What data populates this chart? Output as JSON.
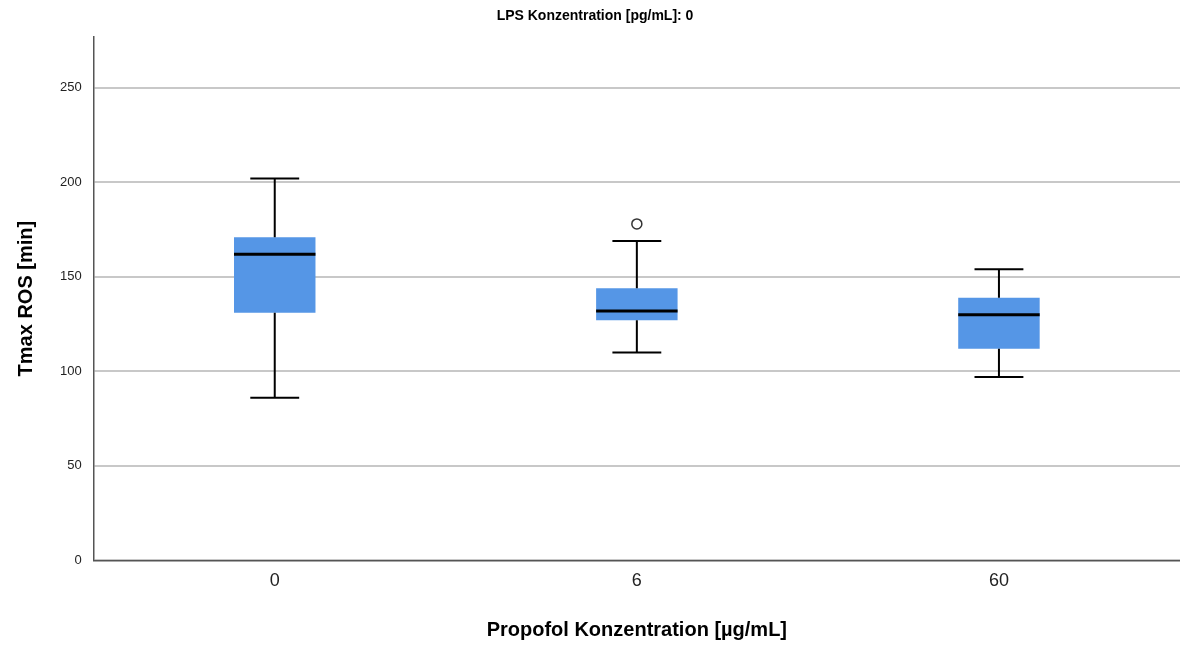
{
  "chart_data": {
    "type": "box",
    "title": "LPS Konzentration [pg/mL]: 0",
    "xlabel": "Propofol Konzentration [µg/mL]",
    "ylabel": "Tmax ROS [min]",
    "categories": [
      "0",
      "6",
      "60"
    ],
    "color": "#5596e6",
    "boxes": [
      {
        "low": 86,
        "q1": 131,
        "median": 162,
        "q3": 171,
        "high": 202
      },
      {
        "low": 110,
        "q1": 127,
        "median": 132,
        "q3": 144,
        "high": 169,
        "outliers": [
          178
        ]
      },
      {
        "low": 97,
        "q1": 112,
        "median": 130,
        "q3": 139,
        "high": 154
      }
    ],
    "ylim": [
      0,
      277
    ],
    "yticks": [
      0,
      50,
      100,
      150,
      200,
      250
    ],
    "grid": "y",
    "legend": false
  }
}
